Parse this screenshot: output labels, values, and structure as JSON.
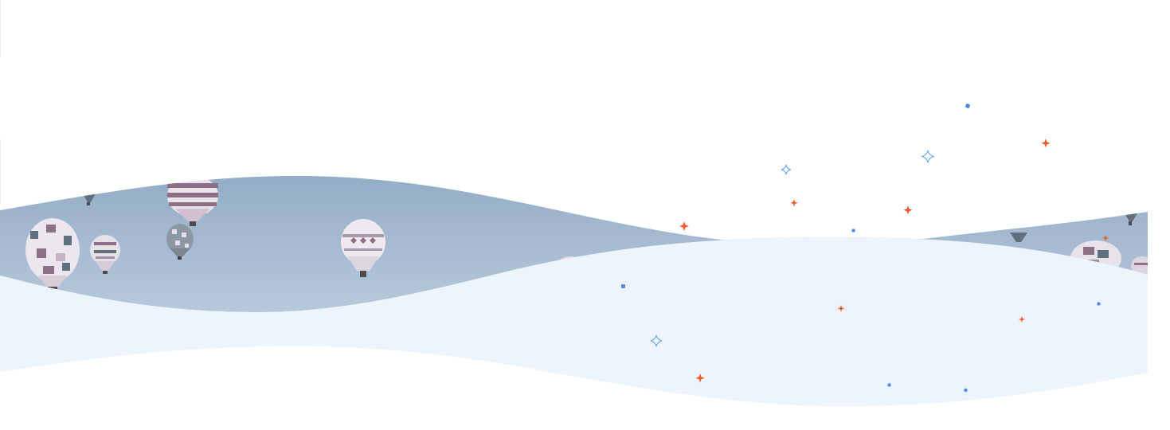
{
  "scene": {
    "description_label": "",
    "palette": {
      "sky_top": "#94aec7",
      "sky_bottom": "#b6c8da",
      "pale_wave": "#eef4fb",
      "background": "#ffffff",
      "sparkle_orange": "#ec5b2c",
      "sparkle_blue": "#4f86f0",
      "sparkle_outline": "#5aa0e8",
      "balloon_light": "#ece7ee",
      "balloon_mauve": "#8d6f86",
      "balloon_slate": "#5f6f7c"
    }
  }
}
